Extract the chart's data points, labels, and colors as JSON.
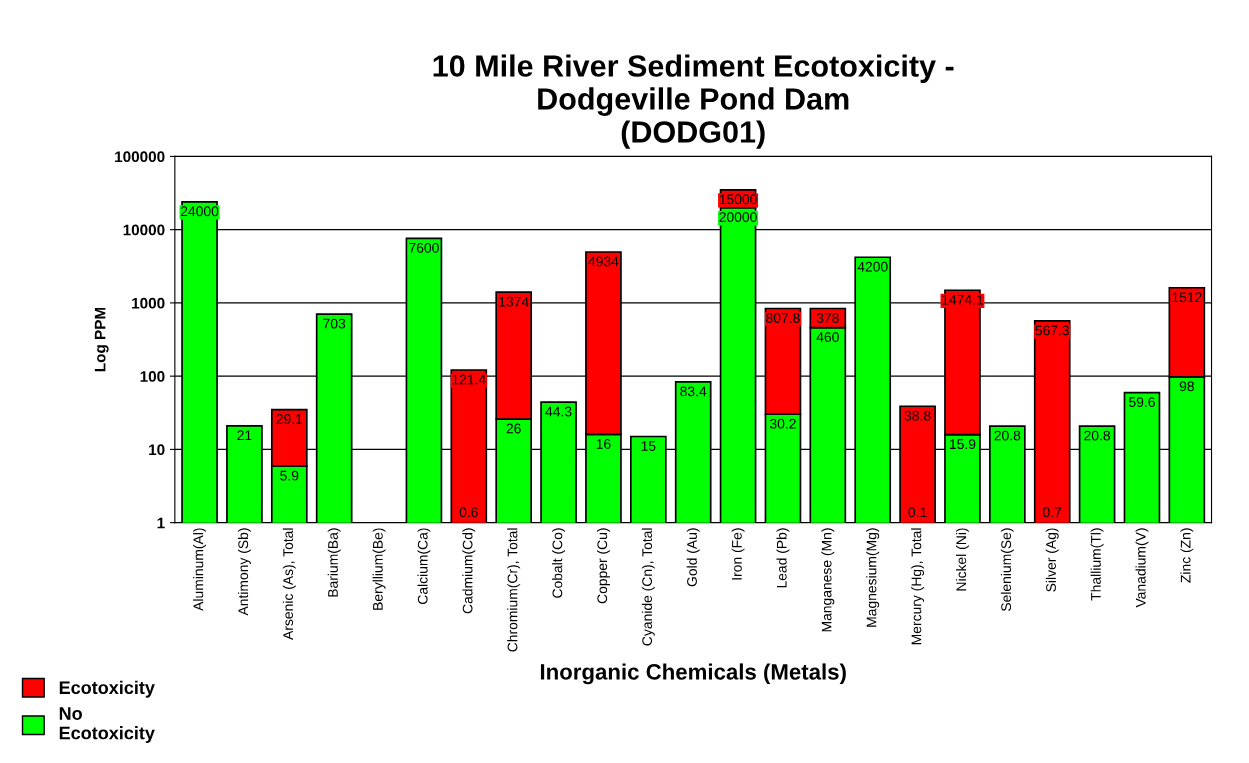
{
  "chart_data": {
    "type": "bar",
    "title": "10 Mile River Sediment Ecotoxicity -\nDodgeville Pond Dam\n(DODG01)",
    "xlabel": "Inorganic Chemicals (Metals)",
    "ylabel": "Log PPM",
    "categories": [
      "Aluminum(Al)",
      "Antimony (Sb)",
      "Arsenic (As), Total",
      "Barium(Ba)",
      "Beryllium(Be)",
      "Calcium(Ca)",
      "Cadmium(Cd)",
      "Chromium(Cr), Total",
      "Cobalt (Co)",
      "Copper (Cu)",
      "Cyanide (Cn), Total",
      "Gold (Au)",
      "Iron (Fe)",
      "Lead (Pb)",
      "Manganese (Mn)",
      "Magnesium(Mg)",
      "Mercury (Hg), Total",
      "Nickel (Ni)",
      "Selenium(Se)",
      "Silver (Ag)",
      "Thallium(Tl)",
      "Vanadium(V)",
      "Zinc (Zn)"
    ],
    "series": [
      {
        "name": "No\nEcotoxicity",
        "color": "#00ff00",
        "values": [
          24000,
          21,
          5.9,
          703,
          null,
          7600,
          null,
          26,
          44.3,
          16,
          15,
          83.4,
          20000,
          30.2,
          460,
          4200,
          null,
          15.9,
          20.8,
          null,
          20.8,
          59.6,
          98
        ],
        "value_labels": [
          "24000",
          "21",
          "5.9",
          "703",
          null,
          "7600",
          "0.6",
          "26",
          "44.3",
          "16",
          "15",
          "83.4",
          "20000",
          "30.2",
          "460",
          "4200",
          "0.1",
          "15.9",
          "20.8",
          "0.7",
          "20.8",
          "59.6",
          "98"
        ]
      },
      {
        "name": "Ecotoxicity",
        "color": "#ff0000",
        "values": [
          null,
          null,
          29.1,
          null,
          null,
          null,
          121.4,
          1374,
          null,
          4934,
          null,
          null,
          15000,
          807.8,
          378,
          null,
          38.8,
          1474.1,
          null,
          567.3,
          null,
          null,
          1512
        ],
        "value_labels": [
          null,
          null,
          "29.1",
          null,
          null,
          null,
          "121.4",
          "1374",
          null,
          "4934",
          null,
          null,
          "15000",
          "807.8",
          "378",
          null,
          "38.8",
          "1474.1",
          null,
          "567.3",
          null,
          null,
          "1512"
        ]
      }
    ],
    "stacked": true,
    "log": true,
    "ylim": [
      1,
      100000
    ],
    "yticks": [
      1,
      10,
      100,
      1000,
      10000,
      100000
    ],
    "grid": "y",
    "legend": "bottom left"
  }
}
